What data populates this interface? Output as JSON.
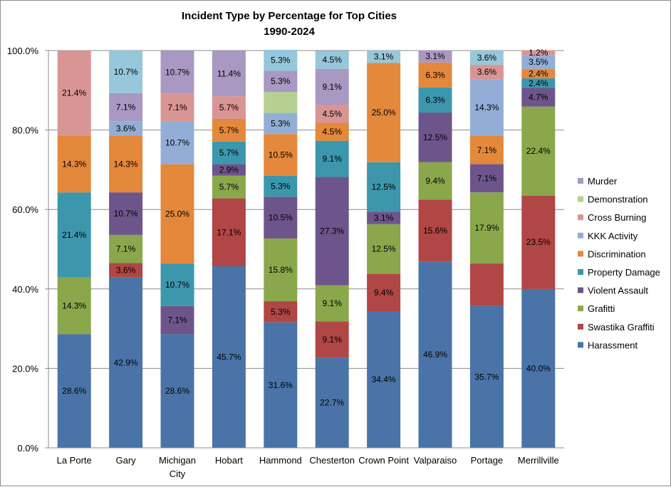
{
  "chart_data": {
    "type": "bar",
    "stacked": true,
    "title_lines": [
      "Incident Type by Percentage for Top Cities",
      "1990-2024"
    ],
    "ylim": [
      0,
      100
    ],
    "yticks": [
      0,
      20,
      40,
      60,
      80,
      100
    ],
    "ytick_labels": [
      "0.0%",
      "20.0%",
      "40.0%",
      "60.0%",
      "80.0%",
      "100.0%"
    ],
    "grid": true,
    "legend_position": "right",
    "categories": [
      [
        "La Porte"
      ],
      [
        "Gary"
      ],
      [
        "Michigan",
        "City"
      ],
      [
        "Hobart"
      ],
      [
        "Hammond"
      ],
      [
        "Chesterton"
      ],
      [
        "Crown Point"
      ],
      [
        "Valparaiso"
      ],
      [
        "Portage"
      ],
      [
        "Merrillville"
      ]
    ],
    "series": [
      {
        "name": "Harassment",
        "color": "#4a74a8",
        "values": [
          28.6,
          42.9,
          28.6,
          45.7,
          31.6,
          22.7,
          34.4,
          46.9,
          35.7,
          40.0
        ]
      },
      {
        "name": "Swastika Graffiti",
        "color": "#b04645",
        "values": [
          0,
          3.6,
          0,
          17.1,
          5.3,
          9.1,
          9.4,
          15.6,
          10.7,
          23.5
        ]
      },
      {
        "name": "Grafitti",
        "color": "#8aa74c",
        "values": [
          14.3,
          7.1,
          0,
          5.7,
          15.8,
          9.1,
          12.5,
          9.4,
          17.9,
          22.4
        ]
      },
      {
        "name": "Violent Assault",
        "color": "#6d558c",
        "values": [
          0,
          10.7,
          7.1,
          2.9,
          10.5,
          27.3,
          3.1,
          12.5,
          7.1,
          4.7
        ]
      },
      {
        "name": "Property Damage",
        "color": "#3c97ac",
        "values": [
          21.4,
          0,
          10.7,
          5.7,
          5.3,
          9.1,
          12.5,
          6.3,
          0,
          2.4
        ]
      },
      {
        "name": "Discrimination",
        "color": "#e4883c",
        "values": [
          14.3,
          14.3,
          25.0,
          5.7,
          10.5,
          4.5,
          25.0,
          6.3,
          7.1,
          2.4
        ]
      },
      {
        "name": "KKK Activity",
        "color": "#93aed6",
        "values": [
          0,
          3.6,
          10.7,
          0,
          5.3,
          0,
          0,
          0,
          14.3,
          3.5
        ]
      },
      {
        "name": "Cross Burning",
        "color": "#d99594",
        "values": [
          21.4,
          0,
          7.1,
          5.7,
          0,
          4.5,
          0,
          0,
          3.6,
          1.2
        ]
      },
      {
        "name": "Demonstration",
        "color": "#b6d091",
        "values": [
          0,
          0,
          0,
          0,
          5.3,
          0,
          0,
          0,
          0,
          0
        ]
      },
      {
        "name": "Murder",
        "color": "#a898c2",
        "values": [
          0,
          7.1,
          10.7,
          11.4,
          5.3,
          9.1,
          0,
          3.1,
          0,
          0
        ]
      },
      {
        "name": "",
        "color": "#97c7da",
        "values": [
          0,
          10.7,
          0,
          0,
          5.3,
          4.5,
          3.1,
          0,
          3.6,
          0
        ]
      }
    ],
    "data_labels": [
      [
        "28.6%",
        "",
        "14.3%",
        "",
        "21.4%",
        "14.3%",
        "",
        "21.4%",
        "",
        "",
        ""
      ],
      [
        "42.9%",
        "3.6%",
        "7.1%",
        "10.7%",
        "",
        "14.3%",
        "3.6%",
        "",
        "",
        "7.1%",
        "10.7%"
      ],
      [
        "28.6%",
        "",
        "",
        "7.1%",
        "10.7%",
        "25.0%",
        "10.7%",
        "7.1%",
        "",
        "10.7%",
        ""
      ],
      [
        "45.7%",
        "17.1%",
        "5.7%",
        "2.9%",
        "5.7%",
        "5.7%",
        "",
        "5.7%",
        "",
        "11.4%",
        ""
      ],
      [
        "31.6%",
        "5.3%",
        "15.8%",
        "10.5%",
        "5.3%",
        "10.5%",
        "5.3%",
        "",
        "",
        "5.3%",
        "5.3%"
      ],
      [
        "22.7%",
        "9.1%",
        "9.1%",
        "27.3%",
        "9.1%",
        "4.5%",
        "",
        "4.5%",
        "",
        "9.1%",
        "4.5%"
      ],
      [
        "34.4%",
        "9.4%",
        "12.5%",
        "3.1%",
        "12.5%",
        "25.0%",
        "",
        "",
        "",
        "",
        "3.1%"
      ],
      [
        "46.9%",
        "15.6%",
        "9.4%",
        "12.5%",
        "6.3%",
        "6.3%",
        "",
        "",
        "",
        "3.1%",
        ""
      ],
      [
        "35.7%",
        "",
        "17.9%",
        "7.1%",
        "",
        "7.1%",
        "14.3%",
        "3.6%",
        "",
        "",
        "3.6%"
      ],
      [
        "40.0%",
        "23.5%",
        "22.4%",
        "4.7%",
        "2.4%",
        "2.4%",
        "3.5%",
        "1.2%",
        "",
        "",
        ""
      ]
    ]
  }
}
